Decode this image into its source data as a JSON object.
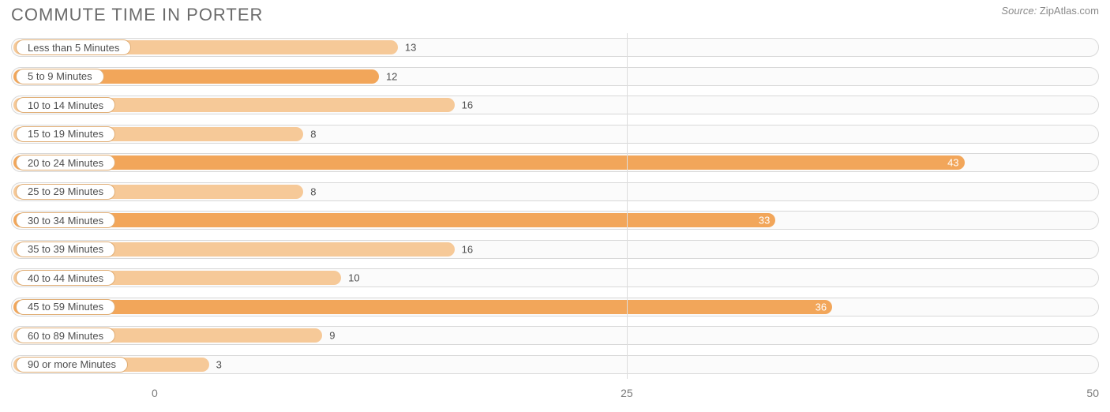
{
  "header": {
    "title": "COMMUTE TIME IN PORTER",
    "source_label": "Source:",
    "source_value": "ZipAtlas.com"
  },
  "chart": {
    "type": "bar",
    "orientation": "horizontal",
    "background_color": "#ffffff",
    "track_border_color": "#d8d8d8",
    "track_bg_color": "#fbfbfb",
    "grid_color": "#dddddd",
    "bar_color_light": "#f6c998",
    "bar_color_normal": "#f2a65a",
    "bar_color_dark": "#ed8a2f",
    "pill_border_color": "#e0ae76",
    "label_fontsize": 13,
    "title_fontsize": 22,
    "axis_fontsize": 14,
    "axis_color": "#7a7a7a",
    "x_origin_pct": 13.2,
    "x_max_value": 50,
    "x_ticks": [
      {
        "value": 0,
        "pct": 13.2
      },
      {
        "value": 25,
        "pct": 56.6
      },
      {
        "value": 50,
        "pct": 100.0
      }
    ],
    "gridlines_pct": [
      56.6
    ],
    "rows": [
      {
        "label": "Less than 5 Minutes",
        "value": 13,
        "tone": "light",
        "inside": false
      },
      {
        "label": "5 to 9 Minutes",
        "value": 12,
        "tone": "normal",
        "inside": false
      },
      {
        "label": "10 to 14 Minutes",
        "value": 16,
        "tone": "light",
        "inside": false
      },
      {
        "label": "15 to 19 Minutes",
        "value": 8,
        "tone": "light",
        "inside": false
      },
      {
        "label": "20 to 24 Minutes",
        "value": 43,
        "tone": "normal",
        "inside": true
      },
      {
        "label": "25 to 29 Minutes",
        "value": 8,
        "tone": "light",
        "inside": false
      },
      {
        "label": "30 to 34 Minutes",
        "value": 33,
        "tone": "normal",
        "inside": true
      },
      {
        "label": "35 to 39 Minutes",
        "value": 16,
        "tone": "light",
        "inside": false
      },
      {
        "label": "40 to 44 Minutes",
        "value": 10,
        "tone": "light",
        "inside": false
      },
      {
        "label": "45 to 59 Minutes",
        "value": 36,
        "tone": "normal",
        "inside": true
      },
      {
        "label": "60 to 89 Minutes",
        "value": 9,
        "tone": "light",
        "inside": false
      },
      {
        "label": "90 or more Minutes",
        "value": 3,
        "tone": "light",
        "inside": false
      }
    ]
  }
}
